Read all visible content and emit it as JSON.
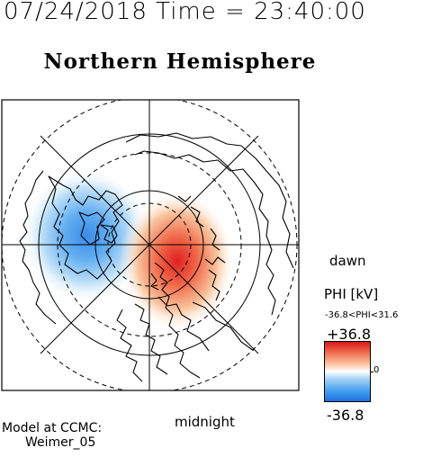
{
  "header": {
    "timestamp": "07/24/2018 Time = 23:40:00",
    "title": "Northern Hemisphere"
  },
  "map": {
    "labels": {
      "dawn": "dawn",
      "midnight": "midnight"
    },
    "projection": "polar stereographic (north pole centered)",
    "features": [
      "coastlines",
      "latitude circles",
      "meridians"
    ],
    "potential_pattern": {
      "positive_cell": "dawn side, red",
      "negative_cell": "dusk side, blue"
    }
  },
  "colorbar": {
    "title": "PHI [kV]",
    "range_text": "-36.8<PHI<31.6",
    "max_label": "+36.8",
    "zero_label": "0",
    "min_label": "-36.8",
    "colors": {
      "max": "#d7191c",
      "mid": "#ffffff",
      "min": "#1e6fe0"
    }
  },
  "credit": {
    "line1": "Model at CCMC:",
    "line2": "Weimer_05"
  }
}
